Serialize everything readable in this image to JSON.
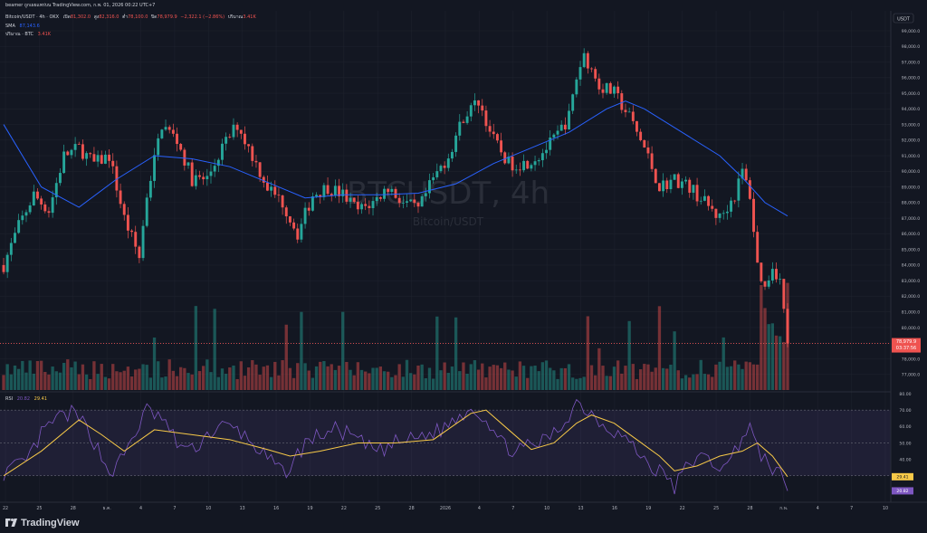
{
  "header": {
    "text": "beamer ถูกเผยแพร่บน TradingView.com, ก.พ. 01, 2026 00:22 UTC+7"
  },
  "legend": {
    "symbol_line": "Bitcoin/USDT · 4h · OKX",
    "open_label": "เปิด",
    "open": "81,302.0",
    "high_label": "สูง",
    "high": "82,316.0",
    "low_label": "ต่ำ",
    "low": "78,100.0",
    "close_label": "ปิด",
    "close": "78,979.9",
    "change": "−2,322.1 (−2.86%)",
    "volume_label": "ปริมาณ",
    "volume": "3.41K",
    "sma_label": "SMA",
    "sma": "87,143.6",
    "vol_label": "ปริมาณ · BTC",
    "vol_value": "3.41K"
  },
  "watermark": {
    "symbol": "BTCUSDT, 4h",
    "name": "Bitcoin/USDT"
  },
  "price_axis": {
    "currency": "USDT",
    "last_price": "78,979.9",
    "countdown": "03:37:56"
  },
  "rsi": {
    "label": "RSI",
    "rsi_value": "20.82",
    "ma_value": "29.41"
  },
  "footer": {
    "brand": "TradingView"
  },
  "colors": {
    "up": "#26a69a",
    "down": "#ef5350",
    "sma": "#2962ff",
    "rsi_line": "#7e57c2",
    "rsi_ma": "#f7c948",
    "background": "#131722"
  },
  "chart_data": [
    {
      "type": "candlestick",
      "symbol": "BTCUSDT",
      "timeframe": "4h",
      "ylim": [
        76000,
        99000
      ],
      "y_ticks": [
        "77,000.0",
        "78,000.0",
        "79,000.0",
        "80,000.0",
        "81,000.0",
        "82,000.0",
        "83,000.0",
        "84,000.0",
        "85,000.0",
        "86,000.0",
        "87,000.0",
        "88,000.0",
        "89,000.0",
        "90,000.0",
        "91,000.0",
        "92,000.0",
        "93,000.0",
        "94,000.0",
        "95,000.0",
        "96,000.0",
        "97,000.0",
        "98,000.0",
        "99,000.0"
      ],
      "x_ticks": [
        "22",
        "25",
        "28",
        "ธ.ค.",
        "4",
        "7",
        "10",
        "13",
        "16",
        "19",
        "22",
        "25",
        "28",
        "2026",
        "4",
        "7",
        "10",
        "13",
        "16",
        "19",
        "22",
        "25",
        "28",
        "ก.พ.",
        "4",
        "7",
        "10"
      ],
      "close_path": [
        [
          0,
          84000
        ],
        [
          4,
          86500
        ],
        [
          8,
          88500
        ],
        [
          12,
          87500
        ],
        [
          16,
          91000
        ],
        [
          20,
          91500
        ],
        [
          24,
          90500
        ],
        [
          28,
          91000
        ],
        [
          32,
          87000
        ],
        [
          36,
          84500
        ],
        [
          38,
          88500
        ],
        [
          42,
          93000
        ],
        [
          46,
          92000
        ],
        [
          50,
          89500
        ],
        [
          54,
          89500
        ],
        [
          58,
          91500
        ],
        [
          62,
          93000
        ],
        [
          66,
          91000
        ],
        [
          70,
          89000
        ],
        [
          74,
          88000
        ],
        [
          78,
          86000
        ],
        [
          82,
          88500
        ],
        [
          86,
          89000
        ],
        [
          90,
          88500
        ],
        [
          94,
          87500
        ],
        [
          98,
          88000
        ],
        [
          102,
          89000
        ],
        [
          106,
          88000
        ],
        [
          110,
          87500
        ],
        [
          114,
          89500
        ],
        [
          118,
          91000
        ],
        [
          122,
          93500
        ],
        [
          126,
          94500
        ],
        [
          130,
          92000
        ],
        [
          134,
          90500
        ],
        [
          138,
          90500
        ],
        [
          142,
          91000
        ],
        [
          146,
          92000
        ],
        [
          150,
          93500
        ],
        [
          152,
          96000
        ],
        [
          154,
          97500
        ],
        [
          158,
          95500
        ],
        [
          162,
          95000
        ],
        [
          166,
          93500
        ],
        [
          170,
          91500
        ],
        [
          174,
          89000
        ],
        [
          178,
          89500
        ],
        [
          182,
          89000
        ],
        [
          186,
          88000
        ],
        [
          190,
          87000
        ],
        [
          194,
          88500
        ],
        [
          196,
          90000
        ],
        [
          198,
          88500
        ],
        [
          200,
          84000
        ],
        [
          202,
          82500
        ],
        [
          204,
          84000
        ],
        [
          206,
          83000
        ],
        [
          208,
          78980
        ]
      ],
      "sma_path": [
        [
          0,
          93000
        ],
        [
          10,
          89000
        ],
        [
          20,
          87700
        ],
        [
          30,
          89500
        ],
        [
          40,
          91000
        ],
        [
          50,
          90800
        ],
        [
          60,
          90300
        ],
        [
          70,
          89300
        ],
        [
          80,
          88300
        ],
        [
          90,
          88500
        ],
        [
          100,
          88500
        ],
        [
          110,
          88600
        ],
        [
          120,
          89200
        ],
        [
          130,
          90500
        ],
        [
          140,
          91500
        ],
        [
          150,
          92500
        ],
        [
          160,
          94000
        ],
        [
          165,
          94500
        ],
        [
          170,
          94000
        ],
        [
          180,
          92500
        ],
        [
          190,
          91000
        ],
        [
          196,
          89600
        ],
        [
          202,
          88000
        ],
        [
          208,
          87143.6
        ]
      ],
      "last_close": 78979.9
    },
    {
      "type": "line",
      "name": "RSI",
      "ylim": [
        15,
        80
      ],
      "y_ticks": [
        "20.00",
        "30.00",
        "40.00",
        "50.00",
        "60.00",
        "70.00",
        "80.00"
      ],
      "band": [
        30,
        70
      ],
      "rsi_path": [
        [
          0,
          32
        ],
        [
          6,
          38
        ],
        [
          10,
          55
        ],
        [
          14,
          65
        ],
        [
          18,
          68
        ],
        [
          22,
          60
        ],
        [
          26,
          42
        ],
        [
          28,
          32
        ],
        [
          30,
          35
        ],
        [
          34,
          52
        ],
        [
          38,
          70
        ],
        [
          42,
          65
        ],
        [
          46,
          50
        ],
        [
          50,
          45
        ],
        [
          54,
          55
        ],
        [
          58,
          60
        ],
        [
          62,
          58
        ],
        [
          66,
          50
        ],
        [
          70,
          40
        ],
        [
          74,
          32
        ],
        [
          76,
          35
        ],
        [
          80,
          50
        ],
        [
          84,
          55
        ],
        [
          88,
          58
        ],
        [
          92,
          55
        ],
        [
          96,
          48
        ],
        [
          100,
          45
        ],
        [
          104,
          50
        ],
        [
          108,
          52
        ],
        [
          112,
          55
        ],
        [
          116,
          58
        ],
        [
          120,
          65
        ],
        [
          124,
          72
        ],
        [
          128,
          65
        ],
        [
          132,
          50
        ],
        [
          136,
          45
        ],
        [
          140,
          48
        ],
        [
          144,
          52
        ],
        [
          148,
          60
        ],
        [
          152,
          75
        ],
        [
          156,
          68
        ],
        [
          160,
          60
        ],
        [
          164,
          55
        ],
        [
          168,
          45
        ],
        [
          172,
          35
        ],
        [
          176,
          30
        ],
        [
          178,
          22
        ],
        [
          180,
          32
        ],
        [
          184,
          42
        ],
        [
          188,
          38
        ],
        [
          192,
          35
        ],
        [
          196,
          55
        ],
        [
          198,
          60
        ],
        [
          200,
          45
        ],
        [
          204,
          35
        ],
        [
          206,
          30
        ],
        [
          208,
          20.82
        ]
      ],
      "ma_path": [
        [
          0,
          30
        ],
        [
          10,
          45
        ],
        [
          20,
          64
        ],
        [
          26,
          55
        ],
        [
          32,
          45
        ],
        [
          40,
          58
        ],
        [
          50,
          55
        ],
        [
          60,
          52
        ],
        [
          70,
          46
        ],
        [
          76,
          42
        ],
        [
          84,
          45
        ],
        [
          94,
          50
        ],
        [
          104,
          50
        ],
        [
          114,
          52
        ],
        [
          124,
          68
        ],
        [
          128,
          70
        ],
        [
          134,
          58
        ],
        [
          140,
          46
        ],
        [
          146,
          50
        ],
        [
          152,
          62
        ],
        [
          156,
          67
        ],
        [
          162,
          62
        ],
        [
          168,
          52
        ],
        [
          174,
          42
        ],
        [
          178,
          33
        ],
        [
          184,
          36
        ],
        [
          190,
          42
        ],
        [
          196,
          45
        ],
        [
          200,
          50
        ],
        [
          204,
          42
        ],
        [
          208,
          29.41
        ]
      ],
      "last_rsi": 20.82,
      "last_ma": 29.41
    }
  ]
}
